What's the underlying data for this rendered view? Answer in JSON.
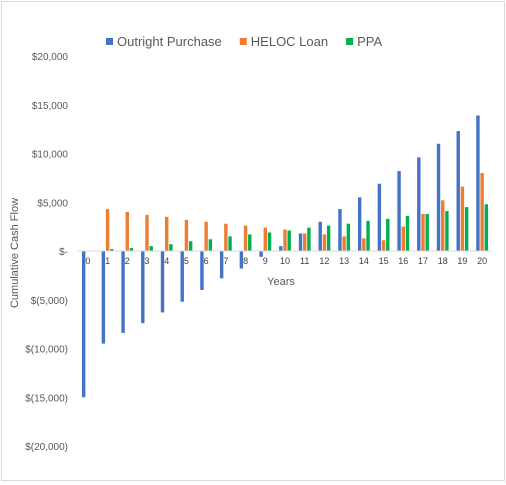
{
  "chart_data": {
    "type": "bar",
    "title": "",
    "xlabel": "Years",
    "ylabel": "Cumulative Cash Flow",
    "ylim": [
      -20000,
      20000
    ],
    "y_ticks": [
      20000,
      15000,
      10000,
      5000,
      0,
      -5000,
      -10000,
      -15000,
      -20000
    ],
    "y_tick_labels": [
      "$20,000",
      "$15,000",
      "$10,000",
      "$5,000",
      "$-",
      "$(5,000)",
      "$(10,000)",
      "$(15,000)",
      "$(20,000)"
    ],
    "categories": [
      "0",
      "1",
      "2",
      "3",
      "4",
      "5",
      "6",
      "7",
      "8",
      "9",
      "10",
      "11",
      "12",
      "13",
      "14",
      "15",
      "16",
      "17",
      "18",
      "19",
      "20"
    ],
    "grid": false,
    "legend_position": "top",
    "series": [
      {
        "name": "Outright Purchase",
        "color": "#4472c4",
        "values": [
          -15000,
          -9500,
          -8400,
          -7400,
          -6300,
          -5200,
          -4000,
          -2800,
          -1800,
          -600,
          500,
          1800,
          3000,
          4300,
          5500,
          6900,
          8200,
          9600,
          11000,
          12300,
          13900
        ]
      },
      {
        "name": "HELOC Loan",
        "color": "#ed7d31",
        "values": [
          0,
          4300,
          4000,
          3700,
          3500,
          3200,
          3000,
          2800,
          2600,
          2400,
          2200,
          1800,
          1700,
          1500,
          1300,
          1100,
          2500,
          3800,
          5200,
          6600,
          8000
        ]
      },
      {
        "name": "PPA",
        "color": "#00b050",
        "values": [
          0,
          200,
          300,
          500,
          700,
          1000,
          1200,
          1500,
          1700,
          1900,
          2100,
          2400,
          2600,
          2800,
          3100,
          3300,
          3600,
          3800,
          4100,
          4500,
          4800
        ]
      }
    ]
  }
}
